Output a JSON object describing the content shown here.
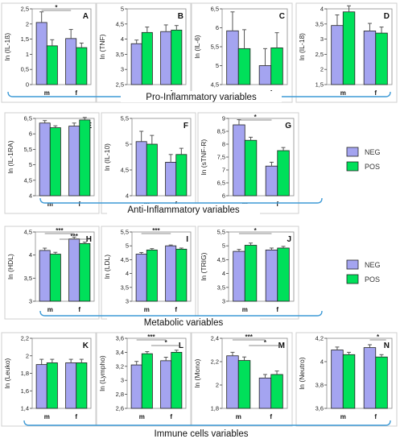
{
  "colors": {
    "neg": "#a4a4f0",
    "pos": "#00e05a",
    "bracket": "#3d9ad6",
    "frame": "#cfcfcf"
  },
  "legend": {
    "neg_label": "NEG",
    "pos_label": "POS"
  },
  "groups": [
    {
      "label": "Pro-Inflammatory variables"
    },
    {
      "label": "Anti-Inflammatory variables"
    },
    {
      "label": "Metabolic variables"
    },
    {
      "label": "Immune cells variables"
    }
  ],
  "chart_data": [
    {
      "type": "bar",
      "panel": "A",
      "ylabel": "ln (IL-1ß)",
      "ylim": [
        0,
        2.5
      ],
      "yticks": [
        "0",
        "0,5",
        "1",
        "1,5",
        "2",
        "2,5"
      ],
      "categories": [
        "m",
        "f"
      ],
      "series": [
        {
          "name": "NEG",
          "values": [
            2.05,
            1.52
          ],
          "errors": [
            0.35,
            0.3
          ]
        },
        {
          "name": "POS",
          "values": [
            1.28,
            1.22
          ],
          "errors": [
            0.2,
            0.15
          ]
        }
      ],
      "significance": [
        {
          "label": "*",
          "from": 0,
          "to": 1
        }
      ]
    },
    {
      "type": "bar",
      "panel": "B",
      "ylabel": "ln (TNF)",
      "ylim": [
        2.5,
        5
      ],
      "yticks": [
        "2,5",
        "3",
        "3,5",
        "4",
        "4,5",
        "5"
      ],
      "categories": [
        "m",
        "f"
      ],
      "series": [
        {
          "name": "NEG",
          "values": [
            3.85,
            4.25
          ],
          "errors": [
            0.12,
            0.22
          ]
        },
        {
          "name": "POS",
          "values": [
            4.22,
            4.3
          ],
          "errors": [
            0.18,
            0.15
          ]
        }
      ],
      "significance": []
    },
    {
      "type": "bar",
      "panel": "C",
      "ylabel": "ln (IL-6)",
      "ylim": [
        4.5,
        6.5
      ],
      "yticks": [
        "4,5",
        "5",
        "5,5",
        "6",
        "6,5"
      ],
      "categories": [
        "m",
        "f"
      ],
      "series": [
        {
          "name": "NEG",
          "values": [
            5.92,
            5.0
          ],
          "errors": [
            0.5,
            0.45
          ]
        },
        {
          "name": "POS",
          "values": [
            5.45,
            5.47
          ],
          "errors": [
            0.5,
            0.4
          ]
        }
      ],
      "significance": []
    },
    {
      "type": "bar",
      "panel": "D",
      "ylabel": "ln (IL-18)",
      "ylim": [
        1.5,
        4
      ],
      "yticks": [
        "1,5",
        "2",
        "2,5",
        "3",
        "3,5",
        "4"
      ],
      "categories": [
        "m",
        "f"
      ],
      "series": [
        {
          "name": "NEG",
          "values": [
            3.45,
            3.27
          ],
          "errors": [
            0.35,
            0.25
          ]
        },
        {
          "name": "POS",
          "values": [
            3.9,
            3.2
          ],
          "errors": [
            0.2,
            0.2
          ]
        }
      ],
      "significance": []
    },
    {
      "type": "bar",
      "panel": "E",
      "ylabel": "ln (IL-1RA)",
      "ylim": [
        4,
        6.5
      ],
      "yticks": [
        "4",
        "4,5",
        "5",
        "5,5",
        "6",
        "6,5"
      ],
      "categories": [
        "m",
        "f"
      ],
      "series": [
        {
          "name": "NEG",
          "values": [
            6.35,
            6.25
          ],
          "errors": [
            0.08,
            0.1
          ]
        },
        {
          "name": "POS",
          "values": [
            6.2,
            6.45
          ],
          "errors": [
            0.06,
            0.08
          ]
        }
      ],
      "significance": []
    },
    {
      "type": "bar",
      "panel": "F",
      "ylabel": "ln (IL-10)",
      "ylim": [
        4,
        5.5
      ],
      "yticks": [
        "4",
        "4,5",
        "5",
        "5,5"
      ],
      "categories": [
        "m",
        "f"
      ],
      "series": [
        {
          "name": "NEG",
          "values": [
            5.05,
            4.65
          ],
          "errors": [
            0.2,
            0.15
          ]
        },
        {
          "name": "POS",
          "values": [
            5.0,
            4.8
          ],
          "errors": [
            0.17,
            0.12
          ]
        }
      ],
      "significance": []
    },
    {
      "type": "bar",
      "panel": "G",
      "ylabel": "ln (sTNF-R)",
      "ylim": [
        6,
        9
      ],
      "yticks": [
        "6",
        "6,5",
        "7",
        "7,5",
        "8",
        "8,5",
        "9"
      ],
      "categories": [
        "m",
        "f"
      ],
      "series": [
        {
          "name": "NEG",
          "values": [
            8.75,
            7.15
          ],
          "errors": [
            0.2,
            0.15
          ]
        },
        {
          "name": "POS",
          "values": [
            8.15,
            7.75
          ],
          "errors": [
            0.12,
            0.12
          ]
        }
      ],
      "significance": [
        {
          "label": "*",
          "from": 0,
          "to": 1
        }
      ]
    },
    {
      "type": "bar",
      "panel": "H",
      "ylabel": "ln (HDL)",
      "ylim": [
        3,
        4.5
      ],
      "yticks": [
        "3",
        "3,5",
        "4",
        "4,5"
      ],
      "categories": [
        "m",
        "f"
      ],
      "series": [
        {
          "name": "NEG",
          "values": [
            4.1,
            4.35
          ],
          "errors": [
            0.05,
            0.04
          ]
        },
        {
          "name": "POS",
          "values": [
            4.02,
            4.25
          ],
          "errors": [
            0.04,
            0.03
          ]
        }
      ],
      "significance": [
        {
          "label": "***",
          "from": 0,
          "to": 1
        },
        {
          "label": "***",
          "from": 0.5,
          "to": 1.5
        }
      ]
    },
    {
      "type": "bar",
      "panel": "I",
      "ylabel": "ln (LDL)",
      "ylim": [
        3,
        5.5
      ],
      "yticks": [
        "3",
        "3,5",
        "4",
        "4,5",
        "5",
        "5,5"
      ],
      "categories": [
        "m",
        "f"
      ],
      "series": [
        {
          "name": "NEG",
          "values": [
            4.7,
            5.0
          ],
          "errors": [
            0.06,
            0.03
          ]
        },
        {
          "name": "POS",
          "values": [
            4.85,
            4.88
          ],
          "errors": [
            0.05,
            0.04
          ]
        }
      ],
      "significance": [
        {
          "label": "***",
          "from": 0,
          "to": 1
        }
      ]
    },
    {
      "type": "bar",
      "panel": "J",
      "ylabel": "ln (TRIG)",
      "ylim": [
        3,
        5.5
      ],
      "yticks": [
        "3",
        "3,5",
        "4",
        "4,5",
        "5",
        "5,5"
      ],
      "categories": [
        "m",
        "f"
      ],
      "series": [
        {
          "name": "NEG",
          "values": [
            4.8,
            4.85
          ],
          "errors": [
            0.07,
            0.07
          ]
        },
        {
          "name": "POS",
          "values": [
            5.02,
            4.92
          ],
          "errors": [
            0.08,
            0.06
          ]
        }
      ],
      "significance": [
        {
          "label": "*",
          "from": 0,
          "to": 1
        }
      ]
    },
    {
      "type": "bar",
      "panel": "K",
      "ylabel": "ln (Leuko)",
      "ylim": [
        1.4,
        2.2
      ],
      "yticks": [
        "1,4",
        "1,6",
        "1,8",
        "2",
        "2,2"
      ],
      "categories": [
        "m",
        "f"
      ],
      "series": [
        {
          "name": "NEG",
          "values": [
            1.9,
            1.92
          ],
          "errors": [
            0.06,
            0.04
          ]
        },
        {
          "name": "POS",
          "values": [
            1.92,
            1.92
          ],
          "errors": [
            0.04,
            0.04
          ]
        }
      ],
      "significance": []
    },
    {
      "type": "bar",
      "panel": "L",
      "ylabel": "ln (Lympho)",
      "ylim": [
        2.6,
        3.6
      ],
      "yticks": [
        "2,6",
        "2,8",
        "3",
        "3,2",
        "3,4",
        "3,6"
      ],
      "categories": [
        "m",
        "f"
      ],
      "series": [
        {
          "name": "NEG",
          "values": [
            3.22,
            3.28
          ],
          "errors": [
            0.05,
            0.05
          ]
        },
        {
          "name": "POS",
          "values": [
            3.38,
            3.4
          ],
          "errors": [
            0.03,
            0.03
          ]
        }
      ],
      "significance": [
        {
          "label": "***",
          "from": 0,
          "to": 1
        },
        {
          "label": "*",
          "from": 0.5,
          "to": 1.5
        }
      ]
    },
    {
      "type": "bar",
      "panel": "M",
      "ylabel": "ln (Mono)",
      "ylim": [
        1.8,
        2.4
      ],
      "yticks": [
        "1,8",
        "2",
        "2,2",
        "2,4"
      ],
      "categories": [
        "m",
        "f"
      ],
      "series": [
        {
          "name": "NEG",
          "values": [
            2.25,
            2.06
          ],
          "errors": [
            0.03,
            0.03
          ]
        },
        {
          "name": "POS",
          "values": [
            2.21,
            2.09
          ],
          "errors": [
            0.03,
            0.03
          ]
        }
      ],
      "significance": [
        {
          "label": "***",
          "from": 0,
          "to": 1
        },
        {
          "label": "*",
          "from": 0.5,
          "to": 1.5
        }
      ]
    },
    {
      "type": "bar",
      "panel": "N",
      "ylabel": "ln (Neutro)",
      "ylim": [
        3.6,
        4.2
      ],
      "yticks": [
        "3,6",
        "3,8",
        "4",
        "4,2"
      ],
      "categories": [
        "m",
        "f"
      ],
      "series": [
        {
          "name": "NEG",
          "values": [
            4.1,
            4.12
          ],
          "errors": [
            0.025,
            0.025
          ]
        },
        {
          "name": "POS",
          "values": [
            4.06,
            4.04
          ],
          "errors": [
            0.02,
            0.02
          ]
        }
      ],
      "significance": [
        {
          "label": "*",
          "from": 1,
          "to": 1.5
        }
      ]
    }
  ]
}
